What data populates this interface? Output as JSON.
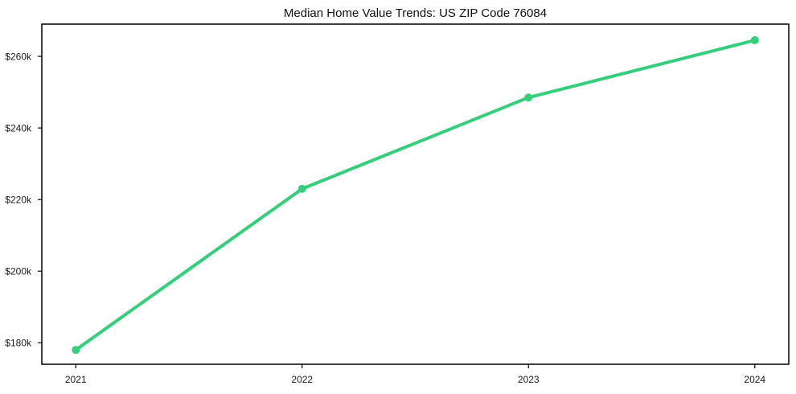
{
  "figure": {
    "background": "#ffffff"
  },
  "chart_data": {
    "type": "line",
    "title": "Median Home Value Trends: US ZIP Code 76084",
    "x": [
      2021,
      2022,
      2023,
      2024
    ],
    "values": [
      178000,
      223000,
      248500,
      264500
    ],
    "xlabel": "",
    "ylabel": "",
    "xlim": [
      2020.85,
      2024.15
    ],
    "ylim": [
      174000,
      269000
    ],
    "xticks": [
      {
        "value": 2021,
        "label": "2021"
      },
      {
        "value": 2022,
        "label": "2022"
      },
      {
        "value": 2023,
        "label": "2023"
      },
      {
        "value": 2024,
        "label": "2024"
      }
    ],
    "yticks": [
      {
        "value": 180000,
        "label": "$180k"
      },
      {
        "value": 200000,
        "label": "$200k"
      },
      {
        "value": 220000,
        "label": "$220k"
      },
      {
        "value": 240000,
        "label": "$240k"
      },
      {
        "value": 260000,
        "label": "$260k"
      }
    ],
    "grid": false,
    "legend_position": "none",
    "line_color": "#35ce7b",
    "marker": "circle",
    "axis_color": "#000000",
    "tick_label_color": "#1a1a1a",
    "background": "#ffffff"
  }
}
